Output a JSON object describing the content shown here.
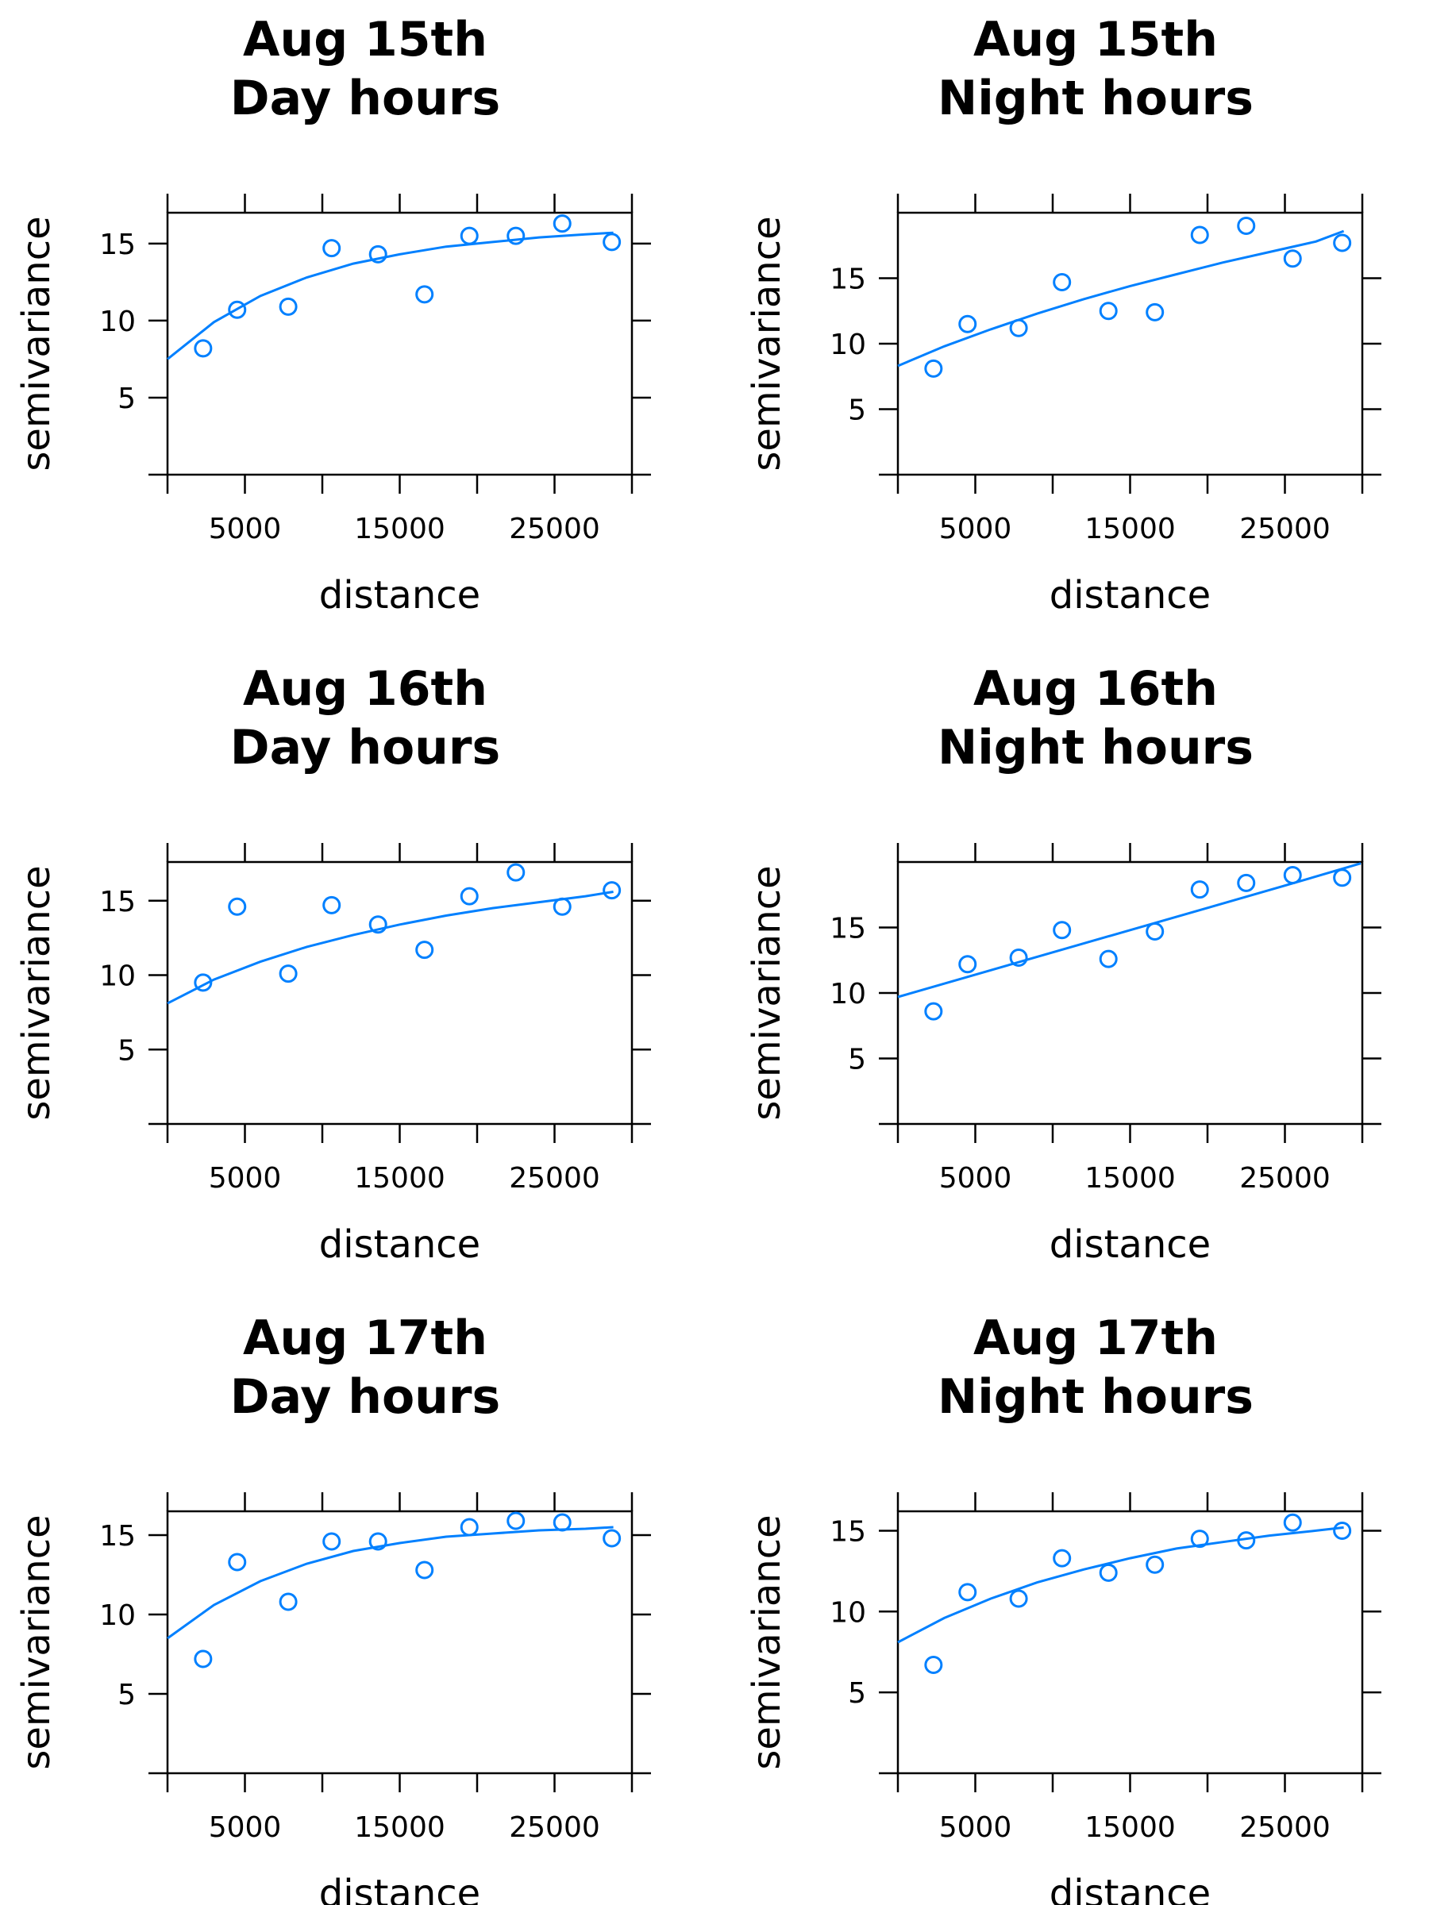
{
  "colors": {
    "points": "#0080ff",
    "fit": "#0080ff",
    "axis": "#000000"
  },
  "chart_data": [
    {
      "type": "scatter",
      "title": [
        "Aug 15th",
        "Day hours"
      ],
      "xlabel": "distance",
      "ylabel": "semivariance",
      "xlim": [
        0,
        30000
      ],
      "ylim": [
        0,
        17
      ],
      "xticks": [
        5000,
        15000,
        25000
      ],
      "yticks": [
        5,
        10,
        15
      ],
      "grid": false,
      "x": [
        2300,
        4500,
        7800,
        10600,
        13600,
        16600,
        19500,
        22500,
        25500,
        28700
      ],
      "y": [
        8.2,
        10.7,
        10.9,
        14.7,
        14.3,
        11.7,
        15.5,
        15.5,
        16.3,
        15.1
      ],
      "fit": {
        "x": [
          0,
          3000,
          6000,
          9000,
          12000,
          15000,
          18000,
          21000,
          24000,
          27000,
          28800
        ],
        "y": [
          7.5,
          9.9,
          11.6,
          12.8,
          13.7,
          14.3,
          14.8,
          15.1,
          15.4,
          15.6,
          15.7
        ]
      }
    },
    {
      "type": "scatter",
      "title": [
        "Aug 15th",
        "Night hours"
      ],
      "xlabel": "distance",
      "ylabel": "semivariance",
      "xlim": [
        0,
        30000
      ],
      "ylim": [
        0,
        20
      ],
      "xticks": [
        5000,
        15000,
        25000
      ],
      "yticks": [
        5,
        10,
        15
      ],
      "grid": false,
      "x": [
        2300,
        4500,
        7800,
        10600,
        13600,
        16600,
        19500,
        22500,
        25500,
        28700
      ],
      "y": [
        8.1,
        11.5,
        11.2,
        14.7,
        12.5,
        12.4,
        18.3,
        19.0,
        16.5,
        17.7
      ],
      "fit": {
        "x": [
          0,
          3000,
          6000,
          9000,
          12000,
          15000,
          18000,
          21000,
          24000,
          27000,
          28800
        ],
        "y": [
          8.3,
          9.8,
          11.1,
          12.3,
          13.4,
          14.4,
          15.3,
          16.2,
          17.0,
          17.8,
          18.6
        ]
      }
    },
    {
      "type": "scatter",
      "title": [
        "Aug 16th",
        "Day hours"
      ],
      "xlabel": "distance",
      "ylabel": "semivariance",
      "xlim": [
        0,
        30000
      ],
      "ylim": [
        0,
        17.6
      ],
      "xticks": [
        5000,
        15000,
        25000
      ],
      "yticks": [
        5,
        10,
        15
      ],
      "grid": false,
      "x": [
        2300,
        4500,
        7800,
        10600,
        13600,
        16600,
        19500,
        22500,
        25500,
        28700
      ],
      "y": [
        9.5,
        14.6,
        10.1,
        14.7,
        13.4,
        11.7,
        15.3,
        16.9,
        14.6,
        15.7
      ],
      "fit": {
        "x": [
          0,
          3000,
          6000,
          9000,
          12000,
          15000,
          18000,
          21000,
          24000,
          27000,
          28800
        ],
        "y": [
          8.1,
          9.7,
          10.9,
          11.9,
          12.7,
          13.4,
          14.0,
          14.5,
          14.9,
          15.3,
          15.6
        ]
      }
    },
    {
      "type": "scatter",
      "title": [
        "Aug 16th",
        "Night hours"
      ],
      "xlabel": "distance",
      "ylabel": "semivariance",
      "xlim": [
        0,
        30000
      ],
      "ylim": [
        0,
        20
      ],
      "xticks": [
        5000,
        15000,
        25000
      ],
      "yticks": [
        5,
        10,
        15
      ],
      "grid": false,
      "x": [
        2300,
        4500,
        7800,
        10600,
        13600,
        16600,
        19500,
        22500,
        25500,
        28700
      ],
      "y": [
        8.6,
        12.2,
        12.7,
        14.8,
        12.6,
        14.7,
        17.9,
        18.4,
        19.0,
        18.8
      ],
      "fit": {
        "x": [
          0,
          5000,
          10000,
          15000,
          20000,
          25000,
          29900
        ],
        "y": [
          9.7,
          11.4,
          13.1,
          14.8,
          16.5,
          18.2,
          19.9
        ]
      }
    },
    {
      "type": "scatter",
      "title": [
        "Aug 17th",
        "Day hours"
      ],
      "xlabel": "distance",
      "ylabel": "semivariance",
      "xlim": [
        0,
        30000
      ],
      "ylim": [
        0,
        16.5
      ],
      "xticks": [
        5000,
        15000,
        25000
      ],
      "yticks": [
        5,
        10,
        15
      ],
      "grid": false,
      "x": [
        2300,
        4500,
        7800,
        10600,
        13600,
        16600,
        19500,
        22500,
        25500,
        28700
      ],
      "y": [
        7.2,
        13.3,
        10.8,
        14.6,
        14.6,
        12.8,
        15.5,
        15.9,
        15.8,
        14.8
      ],
      "fit": {
        "x": [
          0,
          3000,
          6000,
          9000,
          12000,
          15000,
          18000,
          21000,
          24000,
          27000,
          28800
        ],
        "y": [
          8.5,
          10.6,
          12.1,
          13.2,
          14.0,
          14.5,
          14.9,
          15.1,
          15.3,
          15.4,
          15.5
        ]
      }
    },
    {
      "type": "scatter",
      "title": [
        "Aug 17th",
        "Night hours"
      ],
      "xlabel": "distance",
      "ylabel": "semivariance",
      "xlim": [
        0,
        30000
      ],
      "ylim": [
        0,
        16.2
      ],
      "xticks": [
        5000,
        15000,
        25000
      ],
      "yticks": [
        5,
        10,
        15
      ],
      "grid": false,
      "x": [
        2300,
        4500,
        7800,
        10600,
        13600,
        16600,
        19500,
        22500,
        25500,
        28700
      ],
      "y": [
        6.7,
        11.2,
        10.8,
        13.3,
        12.4,
        12.9,
        14.5,
        14.4,
        15.5,
        15.0
      ],
      "fit": {
        "x": [
          0,
          3000,
          6000,
          9000,
          12000,
          15000,
          18000,
          21000,
          24000,
          27000,
          28800
        ],
        "y": [
          8.1,
          9.6,
          10.8,
          11.8,
          12.6,
          13.3,
          13.9,
          14.3,
          14.7,
          15.0,
          15.2
        ]
      }
    }
  ]
}
